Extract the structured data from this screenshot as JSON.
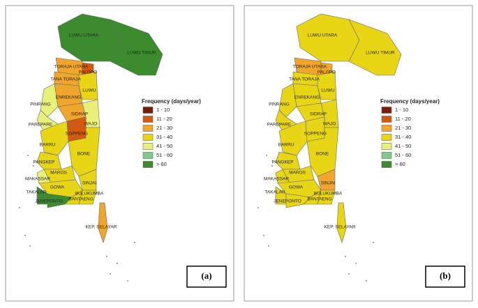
{
  "panels": [
    {
      "label": "(a)",
      "legend": {
        "title": "Frequency (days/year)",
        "items": [
          {
            "label": "1 - 10",
            "color": "#7a1b0c"
          },
          {
            "label": "11 - 20",
            "color": "#d2590f"
          },
          {
            "label": "21 - 30",
            "color": "#f0a52c"
          },
          {
            "label": "31 - 40",
            "color": "#e8d616"
          },
          {
            "label": "41 - 50",
            "color": "#e8f07a"
          },
          {
            "label": "51 - 60",
            "color": "#7fcb8a"
          },
          {
            "label": "> 60",
            "color": "#3c8c2f"
          }
        ]
      },
      "regions": [
        {
          "name": "LUWU UTARA",
          "color": "#3c8c2f"
        },
        {
          "name": "LUWU TIMUR",
          "color": "#3c8c2f"
        },
        {
          "name": "TORAJA UTARA",
          "color": "#f0a52c"
        },
        {
          "name": "PALOPO",
          "color": "#d2590f"
        },
        {
          "name": "TANA TORAJA",
          "color": "#f0a52c"
        },
        {
          "name": "LUWU",
          "color": "#e8d616"
        },
        {
          "name": "ENREKANG",
          "color": "#f0a52c"
        },
        {
          "name": "PINRANG",
          "color": "#e8f07a"
        },
        {
          "name": "SIDRAP",
          "color": "#f0a52c"
        },
        {
          "name": "PAREPARE",
          "color": "#e8f07a"
        },
        {
          "name": "WAJO",
          "color": "#e8f07a"
        },
        {
          "name": "SOPPENG",
          "color": "#d2590f"
        },
        {
          "name": "BARRU",
          "color": "#e8d616"
        },
        {
          "name": "BONE",
          "color": "#e8d616"
        },
        {
          "name": "PANGKEP",
          "color": "#e8d616"
        },
        {
          "name": "MAROS",
          "color": "#e8d616"
        },
        {
          "name": "MAKASSAR",
          "color": "#e8f07a"
        },
        {
          "name": "SINJAI",
          "color": "#e8d616"
        },
        {
          "name": "GOWA",
          "color": "#e8d616"
        },
        {
          "name": "BULUKUMBA",
          "color": "#e8d616"
        },
        {
          "name": "TAKALAR",
          "color": "#3c8c2f"
        },
        {
          "name": "BANTAENG",
          "color": "#e8d616"
        },
        {
          "name": "JENEPONTO",
          "color": "#3c8c2f"
        },
        {
          "name": "KEP. SELAYAR",
          "color": "#f0a52c"
        }
      ]
    },
    {
      "label": "(b)",
      "legend": {
        "title": "Frequency (days/year)",
        "items": [
          {
            "label": "1 - 10",
            "color": "#7a1b0c"
          },
          {
            "label": "11 - 20",
            "color": "#d2590f"
          },
          {
            "label": "21 - 30",
            "color": "#f0a52c"
          },
          {
            "label": "31 - 40",
            "color": "#e8d616"
          },
          {
            "label": "41 - 50",
            "color": "#e8f07a"
          },
          {
            "label": "51 - 60",
            "color": "#7fcb8a"
          },
          {
            "label": "> 60",
            "color": "#3c8c2f"
          }
        ]
      },
      "regions": [
        {
          "name": "LUWU UTARA",
          "color": "#e8d616"
        },
        {
          "name": "LUWU TIMUR",
          "color": "#e8d616"
        },
        {
          "name": "TORAJA UTARA",
          "color": "#f0a52c"
        },
        {
          "name": "PALOPO",
          "color": "#f0a52c"
        },
        {
          "name": "TANA TORAJA",
          "color": "#e8d616"
        },
        {
          "name": "LUWU",
          "color": "#e8d616"
        },
        {
          "name": "ENREKANG",
          "color": "#e8d616"
        },
        {
          "name": "PINRANG",
          "color": "#e8d616"
        },
        {
          "name": "SIDRAP",
          "color": "#e8d616"
        },
        {
          "name": "PAREPARE",
          "color": "#e8d616"
        },
        {
          "name": "WAJO",
          "color": "#e8d616"
        },
        {
          "name": "SOPPENG",
          "color": "#e8d616"
        },
        {
          "name": "BARRU",
          "color": "#e8d616"
        },
        {
          "name": "BONE",
          "color": "#e8d616"
        },
        {
          "name": "PANGKEP",
          "color": "#e8d616"
        },
        {
          "name": "MAROS",
          "color": "#e8d616"
        },
        {
          "name": "MAKASSAR",
          "color": "#e8d616"
        },
        {
          "name": "SINJAI",
          "color": "#f0a52c"
        },
        {
          "name": "GOWA",
          "color": "#e8d616"
        },
        {
          "name": "BULUKUMBA",
          "color": "#e8d616"
        },
        {
          "name": "TAKALAR",
          "color": "#e8d616"
        },
        {
          "name": "BANTAENG",
          "color": "#e8d616"
        },
        {
          "name": "JENEPONTO",
          "color": "#e8d616"
        },
        {
          "name": "KEP. SELAYAR",
          "color": "#e8d616"
        }
      ]
    }
  ]
}
